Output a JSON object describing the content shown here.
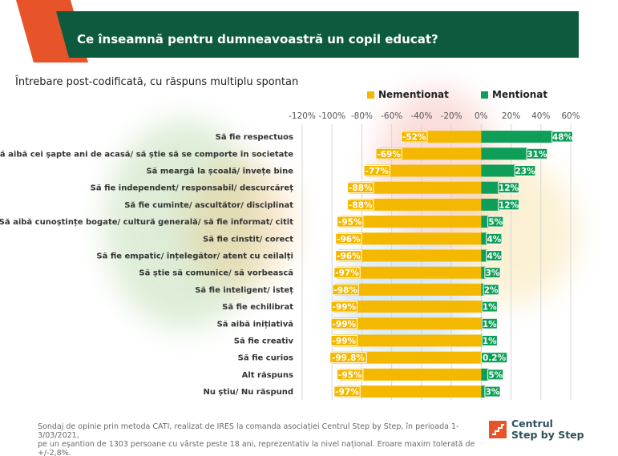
{
  "header": {
    "title": "Ce înseamnă pentru dumneavoastră un copil educat?"
  },
  "subtitle": "Întrebare post-codificată, cu răspuns multiplu spontan",
  "colors": {
    "nementionat": "#F5B800",
    "mentionat": "#0E9E57",
    "header_green": "#0E5A3F",
    "header_orange": "#E8542A",
    "grid": "#D6D6D6"
  },
  "chart_data": {
    "type": "bar",
    "orientation": "horizontal",
    "stacked": true,
    "xlim": [
      -120,
      60
    ],
    "x_ticks": [
      "-120%",
      "-100%",
      "-80%",
      "-60%",
      "-40%",
      "-20%",
      "0%",
      "20%",
      "40%",
      "60%"
    ],
    "x_tick_values": [
      -120,
      -100,
      -80,
      -60,
      -40,
      -20,
      0,
      20,
      40,
      60
    ],
    "grid": true,
    "legend_position": "top-right",
    "categories": [
      "Să fie respectuos",
      "Să aibă cei șapte ani de acasă/ să știe să se comporte în societate",
      "Să meargă la școală/ învețe bine",
      "Să fie independent/ responsabil/ descurcăreț",
      "Să fie cuminte/ ascultător/ disciplinat",
      "Să aibă cunoștințe bogate/ cultură generală/ să fie informat/ citit",
      "Să fie cinstit/ corect",
      "Să fie empatic/ înțelegător/ atent cu ceilalți",
      "Să știe să comunice/ să vorbească",
      "Să fie inteligent/ isteț",
      "Să fie echilibrat",
      "Să aibă inițiativă",
      "Să fie creativ",
      "Să fie curios",
      "Alt răspuns",
      "Nu știu/ Nu răspund"
    ],
    "series": [
      {
        "name": "Nementionat",
        "values": [
          -52,
          -69,
          -77,
          -88,
          -88,
          -95,
          -96,
          -96,
          -97,
          -98,
          -99,
          -99,
          -99,
          -99.8,
          -95,
          -97
        ],
        "labels": [
          "-52%",
          "-69%",
          "-77%",
          "-88%",
          "-88%",
          "-95%",
          "-96%",
          "-96%",
          "-97%",
          "-98%",
          "-99%",
          "-99%",
          "-99%",
          "-99.8%",
          "-95%",
          "-97%"
        ]
      },
      {
        "name": "Mentionat",
        "values": [
          48,
          31,
          23,
          12,
          12,
          5,
          4,
          4,
          3,
          2,
          1,
          1,
          1,
          0.2,
          5,
          3
        ],
        "labels": [
          "48%",
          "31%",
          "23%",
          "12%",
          "12%",
          "5%",
          "4%",
          "4%",
          "3%",
          "2%",
          "1%",
          "1%",
          "1%",
          "0.2%",
          "5%",
          "3%"
        ]
      }
    ]
  },
  "footer": {
    "line1": "Sondaj de opinie prin metoda CATI, realizat de IRES la comanda asociației  Centrul  Step by Step, în perioada 1-3/03/2021,",
    "line2": "pe un eșantion de 1303 persoane cu vârste peste 18 ani, reprezentativ la nivel național. Eroare maxim tolerată de +/-2,8%."
  },
  "logo": {
    "line1": "Centrul",
    "line2": "Step by Step"
  }
}
